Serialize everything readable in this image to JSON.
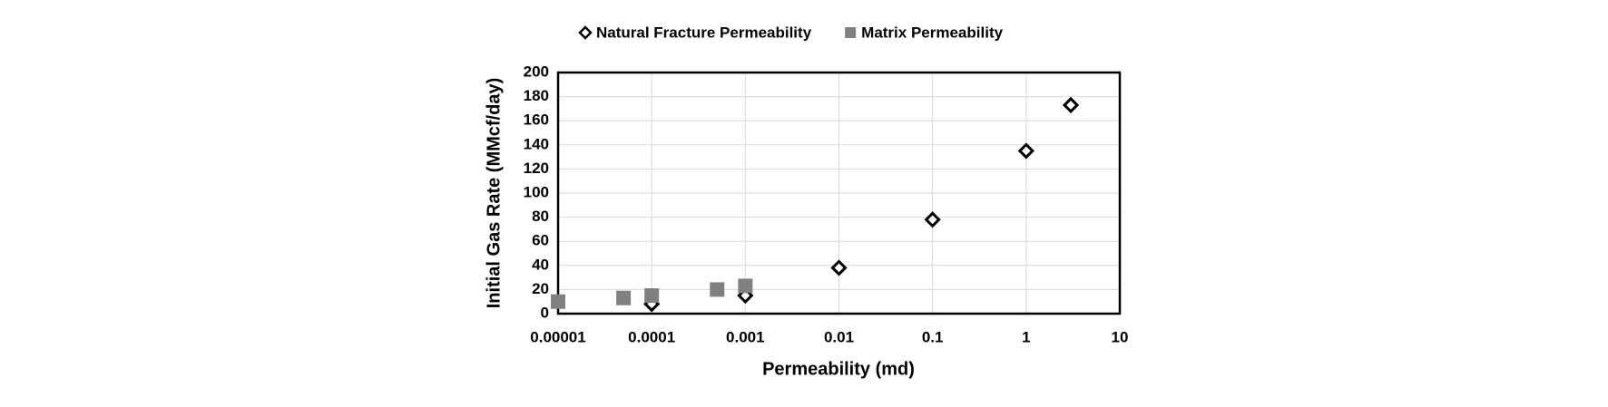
{
  "chart_data": {
    "type": "scatter",
    "xlabel": "Permeability (md)",
    "ylabel": "Initial Gas Rate (MMcf/day)",
    "xscale": "log",
    "grid": true,
    "legend": "top",
    "xlim": [
      1e-05,
      10
    ],
    "xticks": [
      1e-05,
      0.0001,
      0.001,
      0.01,
      0.1,
      1,
      10
    ],
    "ylim": [
      0,
      200
    ],
    "yticks": [
      0,
      20,
      40,
      60,
      80,
      100,
      120,
      140,
      160,
      180,
      200
    ],
    "series": [
      {
        "name": "Natural Fracture Permeability",
        "color": "#000000",
        "marker": "diamond",
        "x": [
          0.0001,
          0.001,
          0.01,
          0.1,
          1,
          3
        ],
        "values": [
          8,
          15,
          38,
          78,
          135,
          173
        ]
      },
      {
        "name": "Matrix Permeability",
        "color": "#808080",
        "marker": "square",
        "x": [
          1e-05,
          5e-05,
          0.0001,
          0.0005,
          0.001
        ],
        "values": [
          10,
          13,
          15,
          20,
          23
        ]
      }
    ]
  }
}
